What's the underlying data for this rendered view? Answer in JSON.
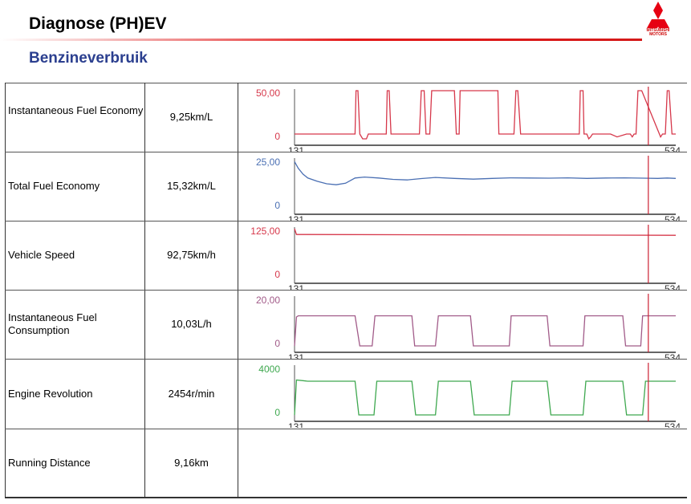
{
  "header": {
    "title": "Diagnose (PH)EV",
    "subtitle": "Benzineverbruik",
    "logo_text": "MITSUBISHI MOTORS",
    "accent_color": "#e41b1b",
    "subtitle_color": "#2b3f8f"
  },
  "rows": [
    {
      "label": "Instantaneous Fuel Economy",
      "value": "9,25km/L",
      "has_chart": true
    },
    {
      "label": "Total Fuel Economy",
      "value": "15,32km/L",
      "has_chart": true
    },
    {
      "label": "Vehicle Speed",
      "value": "92,75km/h",
      "has_chart": true
    },
    {
      "label": "Instantaneous Fuel Consumption",
      "value": "10,03L/h",
      "has_chart": true
    },
    {
      "label": "Engine Revolution",
      "value": "2454r/min",
      "has_chart": true
    },
    {
      "label": "Running Distance",
      "value": "9,16km",
      "has_chart": false
    }
  ],
  "chart_data": [
    {
      "type": "line",
      "title": "Instantaneous Fuel Economy",
      "color": "#d6374a",
      "ylim": [
        0,
        50
      ],
      "ytick_labels": [
        "50,00",
        "0"
      ],
      "xlim": [
        131,
        534
      ],
      "xtick_labels": [
        "131",
        "534"
      ],
      "cursor_x": 505,
      "x": [
        131,
        195,
        196,
        198,
        200,
        203,
        207,
        209,
        211,
        212,
        228,
        229,
        231,
        233,
        263,
        265,
        268,
        270,
        272,
        274,
        276,
        300,
        302,
        303,
        305,
        306,
        346,
        347,
        349,
        351,
        363,
        365,
        367,
        370,
        432,
        433,
        436,
        437,
        440,
        442,
        444,
        446,
        458,
        462,
        465,
        472,
        482,
        486,
        488,
        490,
        492,
        494,
        498,
        518,
        520,
        523,
        525,
        527,
        530,
        534
      ],
      "y": [
        5,
        5,
        50,
        50,
        5,
        0,
        0,
        5,
        5,
        5,
        5,
        50,
        50,
        5,
        5,
        50,
        50,
        5,
        5,
        5,
        50,
        50,
        5,
        5,
        5,
        50,
        50,
        5,
        5,
        5,
        5,
        50,
        50,
        5,
        5,
        50,
        50,
        5,
        5,
        0,
        2,
        5,
        5,
        5,
        5,
        2,
        5,
        5,
        2,
        5,
        5,
        50,
        50,
        2,
        5,
        5,
        50,
        50,
        5,
        5
      ]
    },
    {
      "type": "line",
      "title": "Total Fuel Economy",
      "color": "#4a6fb3",
      "ylim": [
        0,
        25
      ],
      "ytick_labels": [
        "25,00",
        "0"
      ],
      "xlim": [
        131,
        534
      ],
      "xtick_labels": [
        "131",
        "534"
      ],
      "cursor_x": 505,
      "x": [
        131,
        135,
        140,
        145,
        155,
        165,
        175,
        185,
        195,
        205,
        220,
        235,
        250,
        265,
        280,
        300,
        320,
        340,
        360,
        380,
        400,
        420,
        440,
        460,
        480,
        500,
        515,
        525,
        534
      ],
      "y": [
        24,
        20.5,
        17.5,
        15.5,
        13.8,
        12.5,
        12.0,
        12.8,
        15.5,
        16.0,
        15.5,
        14.8,
        14.5,
        15.2,
        15.8,
        15.3,
        14.9,
        15.3,
        15.6,
        15.5,
        15.4,
        15.6,
        15.3,
        15.5,
        15.6,
        15.4,
        15.3,
        15.5,
        15.3
      ]
    },
    {
      "type": "line",
      "title": "Vehicle Speed",
      "color": "#d6374a",
      "ylim": [
        0,
        125
      ],
      "ytick_labels": [
        "125,00",
        "0"
      ],
      "xlim": [
        131,
        534
      ],
      "xtick_labels": [
        "131",
        "534"
      ],
      "cursor_x": 505,
      "x": [
        131,
        133,
        140,
        534
      ],
      "y": [
        125,
        110,
        110,
        108
      ]
    },
    {
      "type": "line",
      "title": "Instantaneous Fuel Consumption",
      "color": "#a15a88",
      "ylim": [
        0,
        20
      ],
      "ytick_labels": [
        "20,00",
        "0"
      ],
      "xlim": [
        131,
        534
      ],
      "xtick_labels": [
        "131",
        "534"
      ],
      "cursor_x": 505,
      "x": [
        131,
        133,
        135,
        195,
        200,
        213,
        216,
        218,
        255,
        258,
        265,
        280,
        283,
        285,
        317,
        320,
        333,
        358,
        360,
        362,
        398,
        401,
        413,
        436,
        438,
        440,
        478,
        481,
        488,
        497,
        499,
        501,
        534
      ],
      "y": [
        0,
        12,
        12.5,
        12.5,
        0,
        0,
        12.5,
        12.5,
        12.5,
        0,
        0,
        0,
        12.5,
        12.5,
        12.5,
        0,
        0,
        0,
        12.5,
        12.5,
        12.5,
        0,
        0,
        0,
        12.5,
        12.5,
        12.5,
        0,
        0,
        0,
        12.5,
        12.5,
        12.5
      ]
    },
    {
      "type": "line",
      "title": "Engine Revolution",
      "color": "#3ea84f",
      "ylim": [
        0,
        4000
      ],
      "ytick_labels": [
        "4000",
        "0"
      ],
      "xlim": [
        131,
        534
      ],
      "xtick_labels": [
        "131",
        "534"
      ],
      "cursor_x": 505,
      "x": [
        131,
        133,
        145,
        195,
        199,
        215,
        218,
        255,
        259,
        280,
        283,
        317,
        321,
        358,
        361,
        398,
        402,
        436,
        439,
        478,
        482,
        499,
        502,
        534
      ],
      "y": [
        2,
        2900,
        2800,
        2800,
        0,
        0,
        2800,
        2800,
        0,
        0,
        2800,
        2800,
        0,
        0,
        2800,
        2800,
        0,
        0,
        2800,
        2800,
        0,
        0,
        2800,
        2800
      ]
    }
  ]
}
